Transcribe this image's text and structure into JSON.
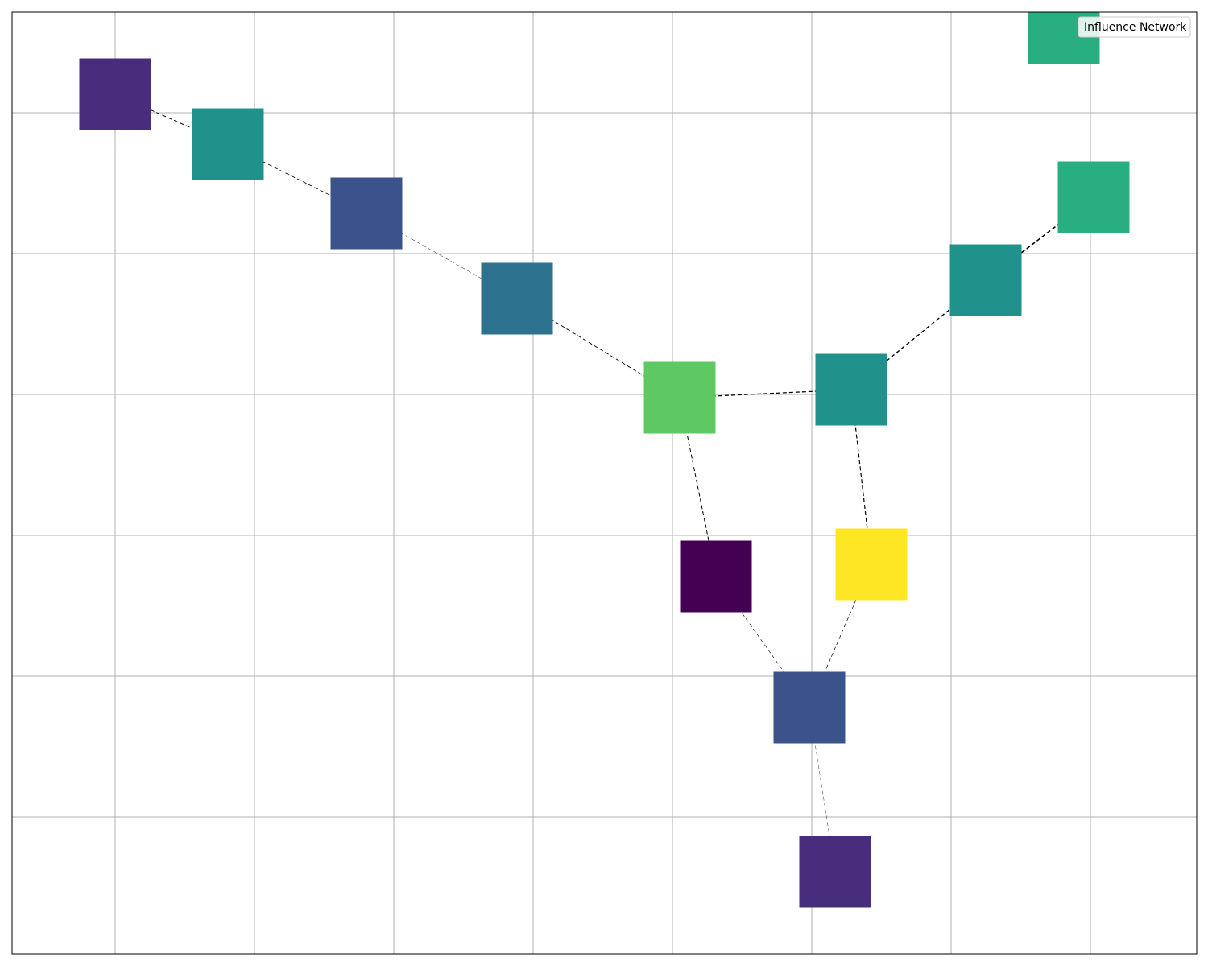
{
  "legend": {
    "label": "Influence Network"
  },
  "colors": {
    "grid": "#b0b0b0",
    "frame": "#000000",
    "edge": "#000000"
  },
  "grid": {
    "visible": true
  },
  "nodes": [
    {
      "id": "n0",
      "color": "#472d7b"
    },
    {
      "id": "n1",
      "color": "#21918c"
    },
    {
      "id": "n2",
      "color": "#3b528b"
    },
    {
      "id": "n3",
      "color": "#2c728e"
    },
    {
      "id": "n4",
      "color": "#5ec962"
    },
    {
      "id": "n5",
      "color": "#21918c"
    },
    {
      "id": "n6",
      "color": "#21918c"
    },
    {
      "id": "n7",
      "color": "#28ae80"
    },
    {
      "id": "n8",
      "color": "#28ae80"
    },
    {
      "id": "n9",
      "color": "#440154"
    },
    {
      "id": "n10",
      "color": "#fde725"
    },
    {
      "id": "n11",
      "color": "#3b528b"
    },
    {
      "id": "n12",
      "color": "#472d7b"
    }
  ],
  "edges": [
    {
      "from": "n0",
      "to": "n1",
      "weight": 1.0
    },
    {
      "from": "n1",
      "to": "n2",
      "weight": 0.8
    },
    {
      "from": "n2",
      "to": "n3",
      "weight": 0.5
    },
    {
      "from": "n3",
      "to": "n4",
      "weight": 0.9
    },
    {
      "from": "n4",
      "to": "n5",
      "weight": 1.2
    },
    {
      "from": "n5",
      "to": "n6",
      "weight": 1.4
    },
    {
      "from": "n6",
      "to": "n7",
      "weight": 1.6
    },
    {
      "from": "n4",
      "to": "n9",
      "weight": 1.0
    },
    {
      "from": "n5",
      "to": "n10",
      "weight": 1.2
    },
    {
      "from": "n9",
      "to": "n11",
      "weight": 0.6
    },
    {
      "from": "n10",
      "to": "n11",
      "weight": 0.7
    },
    {
      "from": "n11",
      "to": "n12",
      "weight": 0.4
    }
  ]
}
